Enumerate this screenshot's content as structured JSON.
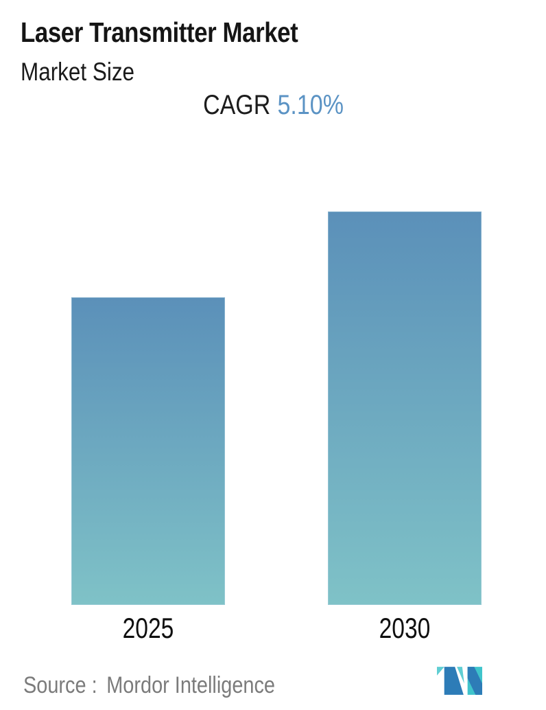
{
  "header": {
    "title": "Laser Transmitter Market",
    "subtitle": "Market Size"
  },
  "cagr": {
    "label": "CAGR",
    "value": "5.10%"
  },
  "chart_data": {
    "type": "bar",
    "title": "Laser Transmitter Market",
    "subtitle": "Market Size",
    "categories": [
      "2025",
      "2030"
    ],
    "values": [
      1.0,
      1.28
    ],
    "values_note": "No numeric y-axis is shown; values are relative bar heights indexed to 2025 = 1.00, consistent with the stated CAGR of 5.10% over 2025-2030",
    "cagr_label": "CAGR",
    "cagr_value": "5.10%",
    "xlabel": "",
    "ylabel": "",
    "ylim": [
      0,
      1.5
    ],
    "grid": false,
    "legend": false,
    "axes_hidden": true,
    "bar_gradient": {
      "top": "#5b90b9",
      "bottom": "#7fc2c7"
    }
  },
  "footer": {
    "source_label": "Source :",
    "source_value": "Mordor Intelligence"
  },
  "logo": {
    "name": "mordor-intelligence-logo",
    "blue": "#2d7cb7",
    "teal": "#3fc4cb",
    "teal_light": "#5fced3"
  },
  "colors": {
    "accent_blue": "#5b93c4",
    "title_text": "#151515",
    "source_text": "#7b7b7b",
    "background": "#ffffff"
  }
}
